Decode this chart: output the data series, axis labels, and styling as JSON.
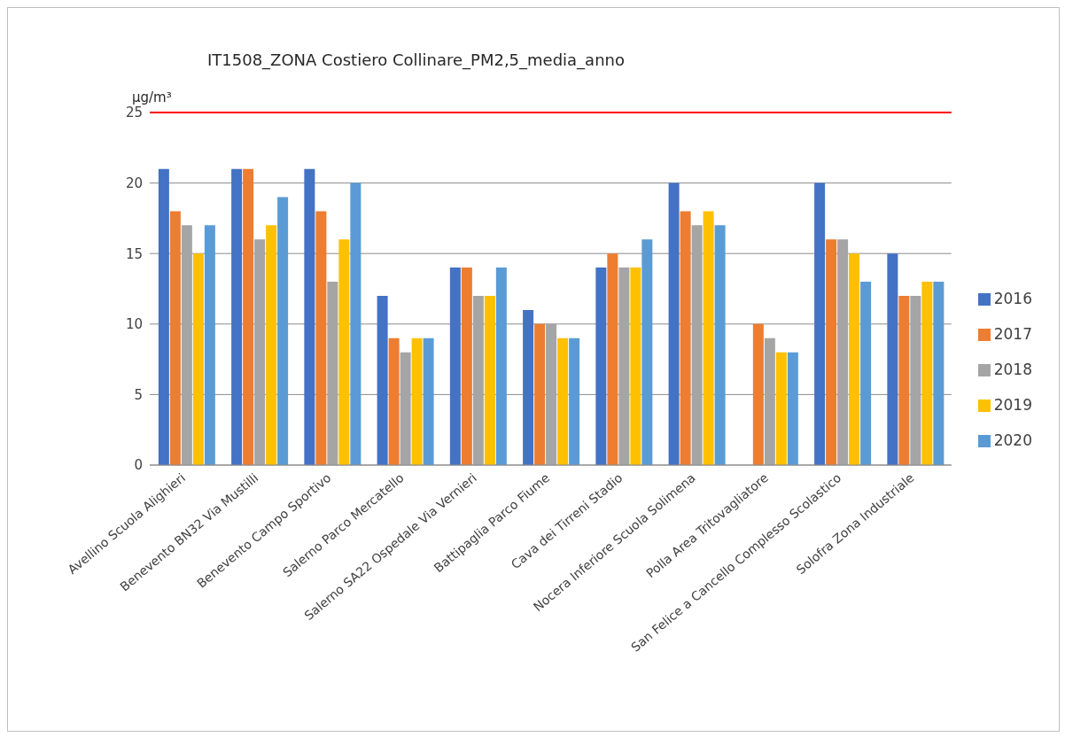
{
  "chart_data": {
    "type": "bar",
    "title": "IT1508_ZONA Costiero Collinare_PM2,5_media_anno",
    "ylabel": "µg/m³",
    "categories": [
      "Avellino Scuola Alighieri",
      "Benevento BN32 Via Mustilli",
      "Benevento Campo Sportivo",
      "Salerno Parco Mercatello",
      "Salerno SA22 Ospedale Via Vernieri",
      "Battipaglia Parco Fiume",
      "Cava dei Tirreni Stadio",
      "Nocera Inferiore Scuola Solimena",
      "Polla Area Tritovagliatore",
      "San Felice a Cancello Complesso Scolastico",
      "Solofra Zona Industriale"
    ],
    "series": [
      {
        "name": "2016",
        "color": "#4472c4",
        "values": [
          21,
          21,
          21,
          12,
          14,
          11,
          14,
          20,
          null,
          20,
          15
        ]
      },
      {
        "name": "2017",
        "color": "#ed7d31",
        "values": [
          18,
          21,
          18,
          9,
          14,
          10,
          15,
          18,
          10,
          16,
          12
        ]
      },
      {
        "name": "2018",
        "color": "#a5a5a5",
        "values": [
          17,
          16,
          13,
          8,
          12,
          10,
          14,
          17,
          9,
          16,
          12
        ]
      },
      {
        "name": "2019",
        "color": "#ffc000",
        "values": [
          15,
          17,
          16,
          9,
          12,
          9,
          14,
          18,
          8,
          15,
          13
        ]
      },
      {
        "name": "2020",
        "color": "#5b9bd5",
        "values": [
          17,
          19,
          20,
          9,
          14,
          9,
          16,
          17,
          8,
          13,
          13
        ]
      }
    ],
    "ylim": [
      0,
      25
    ],
    "yticks": [
      0,
      5,
      10,
      15,
      20,
      25
    ],
    "grid": "y",
    "legend": "right",
    "ref_lines": [
      {
        "axis": "y",
        "value": 25,
        "color": "#ff0000"
      }
    ]
  }
}
